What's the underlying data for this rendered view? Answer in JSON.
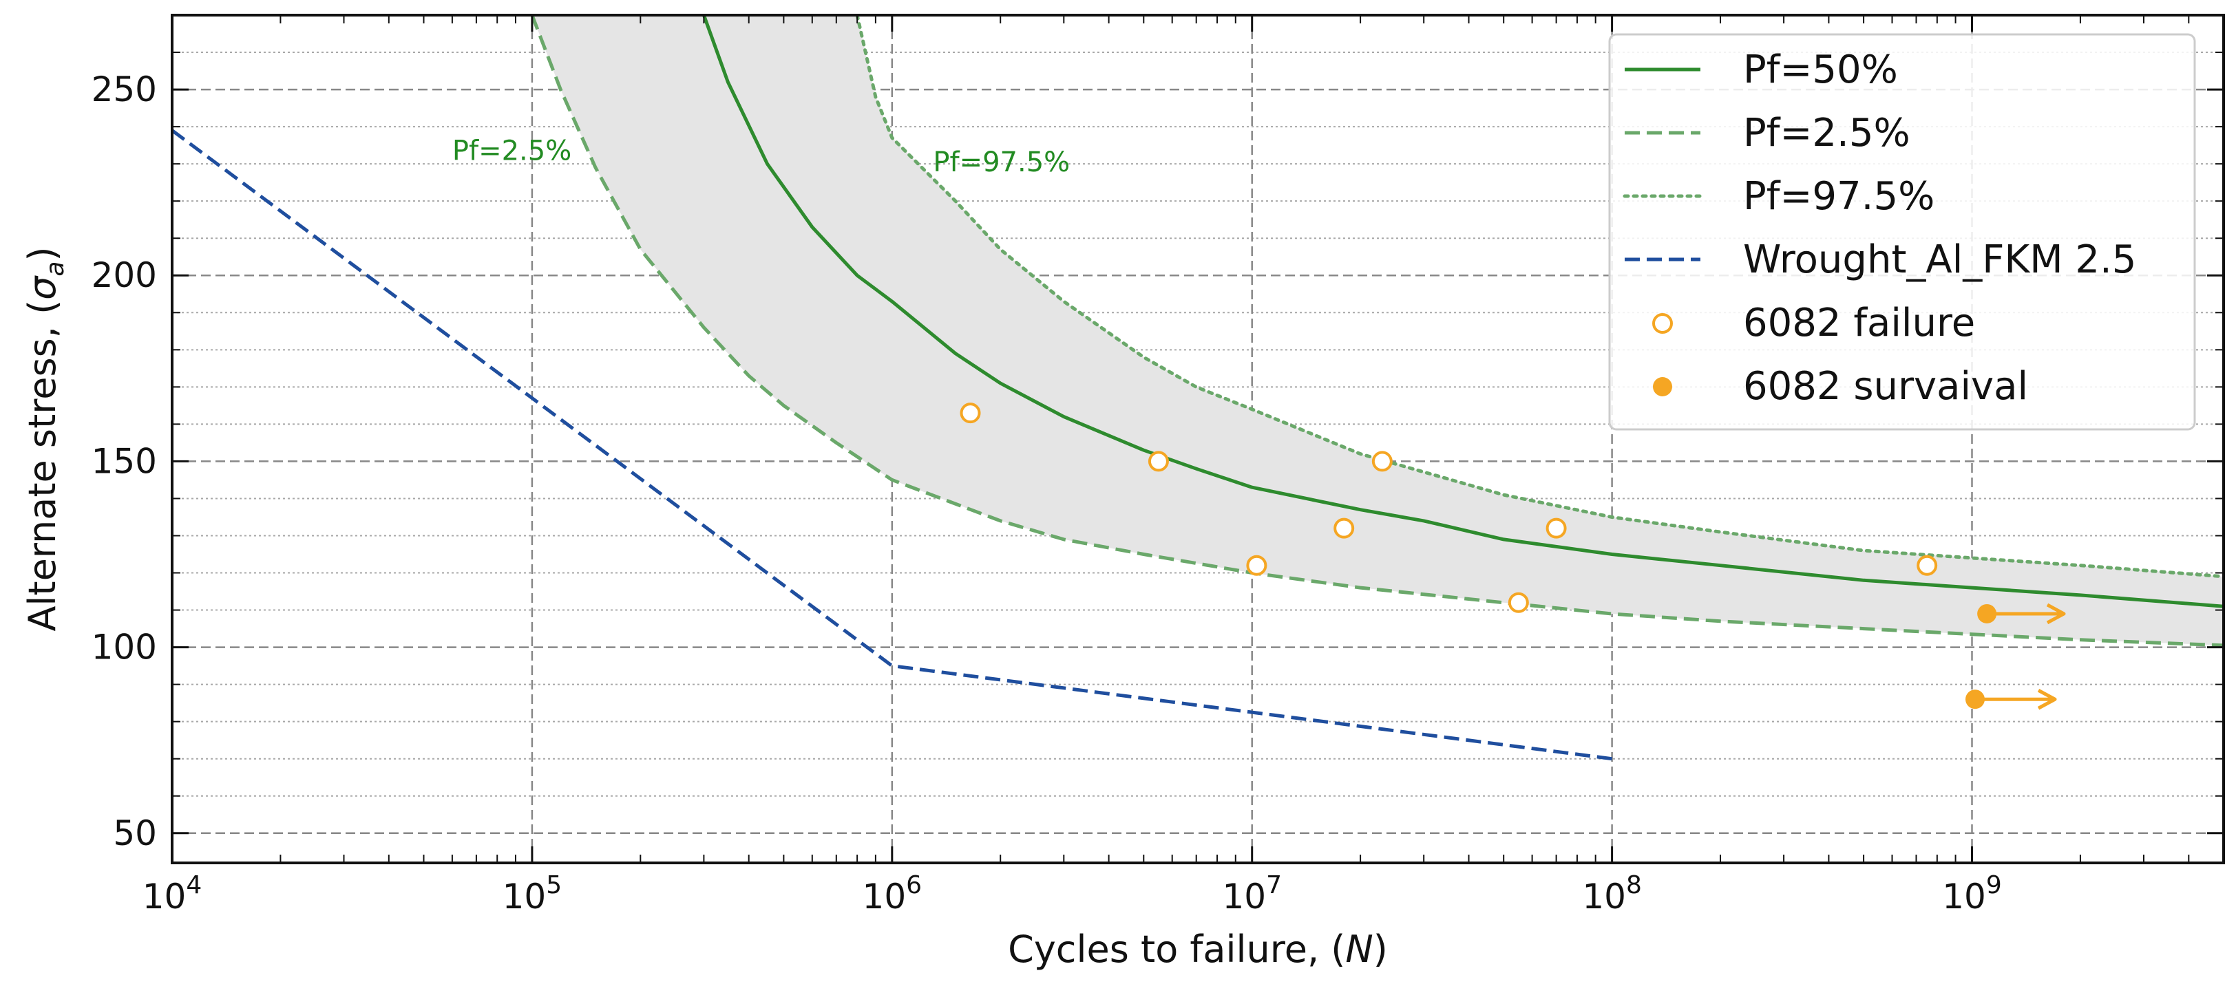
{
  "chart_data": {
    "type": "line",
    "xscale": "log",
    "xlim": [
      10000,
      5000000000
    ],
    "ylim": [
      42,
      270
    ],
    "xlabel_prefix": "Cycles to failure, (",
    "xlabel_var": "N",
    "xlabel_suffix": ")",
    "ylabel_prefix": "Alternate stress, (",
    "ylabel_var": "σ",
    "ylabel_sub": "a",
    "ylabel_suffix": ")",
    "x_ticks": [
      {
        "value": 10000,
        "base": "10",
        "exp": "4"
      },
      {
        "value": 100000,
        "base": "10",
        "exp": "5"
      },
      {
        "value": 1000000,
        "base": "10",
        "exp": "6"
      },
      {
        "value": 10000000,
        "base": "10",
        "exp": "7"
      },
      {
        "value": 100000000,
        "base": "10",
        "exp": "8"
      },
      {
        "value": 1000000000,
        "base": "10",
        "exp": "9"
      }
    ],
    "y_ticks": [
      50,
      100,
      150,
      200,
      250
    ],
    "grid": true,
    "legend_position": "top-right",
    "series": [
      {
        "name": "Pf=50%",
        "style": "solid",
        "color": "#2e8b2e",
        "points": [
          [
            300000,
            270
          ],
          [
            350000,
            252
          ],
          [
            450000,
            230
          ],
          [
            600000,
            213
          ],
          [
            800000,
            200
          ],
          [
            1000000,
            193
          ],
          [
            1500000,
            179
          ],
          [
            2000000,
            171
          ],
          [
            3000000,
            162
          ],
          [
            5000000,
            153
          ],
          [
            7000000,
            148
          ],
          [
            10000000,
            143
          ],
          [
            20000000,
            137
          ],
          [
            30000000,
            134
          ],
          [
            50000000,
            129
          ],
          [
            100000000,
            125
          ],
          [
            200000000,
            122
          ],
          [
            500000000,
            118
          ],
          [
            1000000000,
            116
          ],
          [
            2000000000,
            114
          ],
          [
            5000000000,
            111
          ]
        ]
      },
      {
        "name": "Pf=2.5%",
        "style": "dashed",
        "color": "#6aa86a",
        "points": [
          [
            100000,
            270
          ],
          [
            120000,
            250
          ],
          [
            150000,
            229
          ],
          [
            200000,
            207
          ],
          [
            300000,
            186
          ],
          [
            400000,
            173
          ],
          [
            500000,
            165
          ],
          [
            700000,
            155
          ],
          [
            1000000,
            145
          ],
          [
            2000000,
            134
          ],
          [
            3000000,
            129
          ],
          [
            5000000,
            125
          ],
          [
            10000000,
            120
          ],
          [
            20000000,
            116
          ],
          [
            50000000,
            112
          ],
          [
            100000000,
            109
          ],
          [
            200000000,
            107
          ],
          [
            500000000,
            105
          ],
          [
            1000000000,
            103.5
          ],
          [
            2000000000,
            102
          ],
          [
            5000000000,
            100.5
          ]
        ]
      },
      {
        "name": "Pf=97.5%",
        "style": "dotted",
        "color": "#6aa86a",
        "points": [
          [
            800000,
            270
          ],
          [
            900000,
            248
          ],
          [
            1000000,
            237
          ],
          [
            1300000,
            226
          ],
          [
            1500000,
            220
          ],
          [
            2000000,
            207
          ],
          [
            3000000,
            193
          ],
          [
            5000000,
            178
          ],
          [
            7000000,
            170
          ],
          [
            10000000,
            164
          ],
          [
            20000000,
            152
          ],
          [
            50000000,
            141
          ],
          [
            100000000,
            135
          ],
          [
            200000000,
            131
          ],
          [
            500000000,
            126
          ],
          [
            1000000000,
            124
          ],
          [
            2000000000,
            122
          ],
          [
            5000000000,
            119
          ]
        ]
      },
      {
        "name": "Wrought_Al_FKM 2.5",
        "style": "dashed",
        "color": "#1f4e9e",
        "points": [
          [
            10000,
            239
          ],
          [
            1000000,
            95
          ],
          [
            100000000,
            70
          ]
        ]
      }
    ],
    "band": {
      "name": "scatter band",
      "color": "#e5e5e5"
    },
    "failure_points": {
      "name": "6082 failure",
      "color": "#f5a623",
      "points": [
        [
          1650000,
          163
        ],
        [
          5500000,
          150
        ],
        [
          10300000,
          122
        ],
        [
          18000000,
          132
        ],
        [
          23000000,
          150
        ],
        [
          55000000,
          112
        ],
        [
          70000000,
          132
        ],
        [
          750000000,
          122
        ]
      ]
    },
    "survival_points": {
      "name": "6082 survaival",
      "color": "#f5a623",
      "points": [
        [
          1100000000,
          109
        ],
        [
          1020000000,
          86
        ]
      ],
      "arrow_to": [
        1800000000,
        1700000000
      ]
    },
    "annotations": [
      {
        "text": "Pf=2.5%",
        "x": 60000,
        "y": 231,
        "color": "#228b22"
      },
      {
        "text": "Pf=97.5%",
        "x": 1300000,
        "y": 228,
        "color": "#228b22"
      }
    ]
  }
}
